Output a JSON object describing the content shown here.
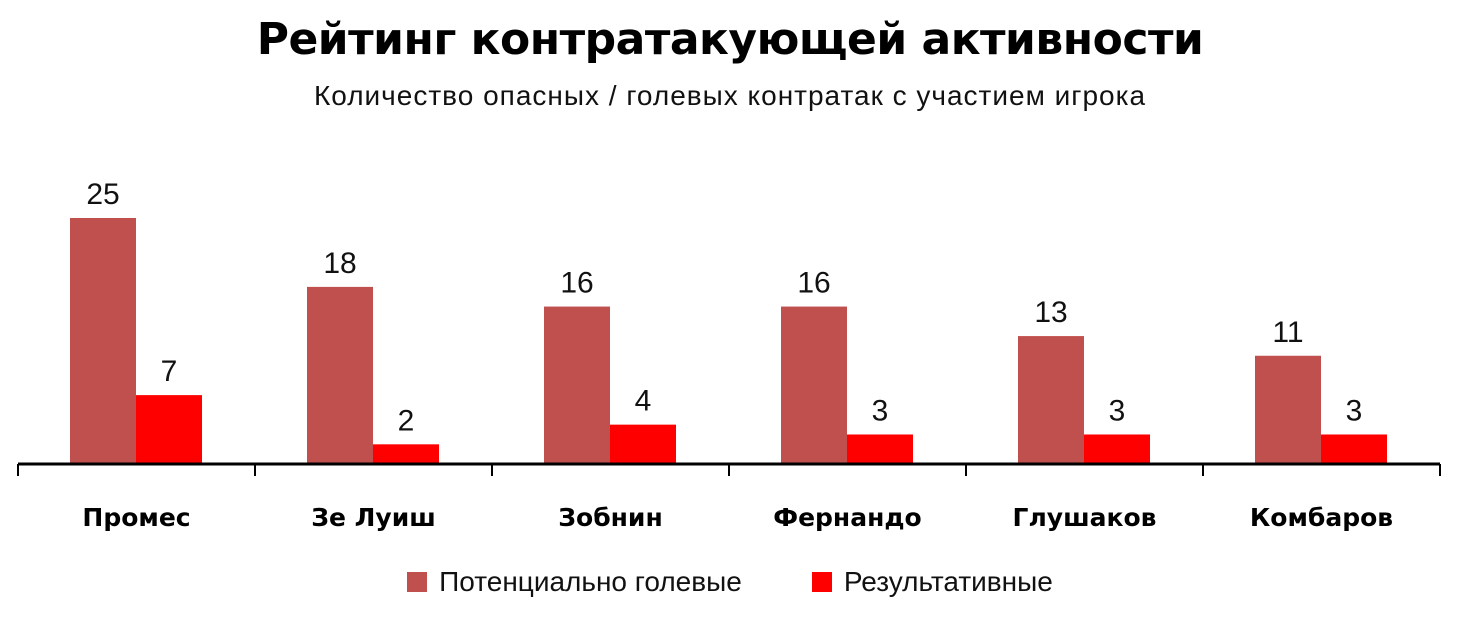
{
  "chart_data": {
    "type": "bar",
    "title": "Рейтинг контратакующей активности",
    "subtitle": "Количество опасных / голевых контратак с участием игрока",
    "categories": [
      "Промес",
      "Зе Луиш",
      "Зобнин",
      "Фернандо",
      "Глушаков",
      "Комбаров"
    ],
    "series": [
      {
        "name": "Потенциально голевые",
        "color": "#c0504d",
        "values": [
          25,
          18,
          16,
          16,
          13,
          11
        ]
      },
      {
        "name": "Результативные",
        "color": "#ff0000",
        "values": [
          7,
          2,
          4,
          3,
          3,
          3
        ]
      }
    ],
    "ylim": [
      0,
      25
    ],
    "grid": false,
    "legend_position": "bottom"
  }
}
